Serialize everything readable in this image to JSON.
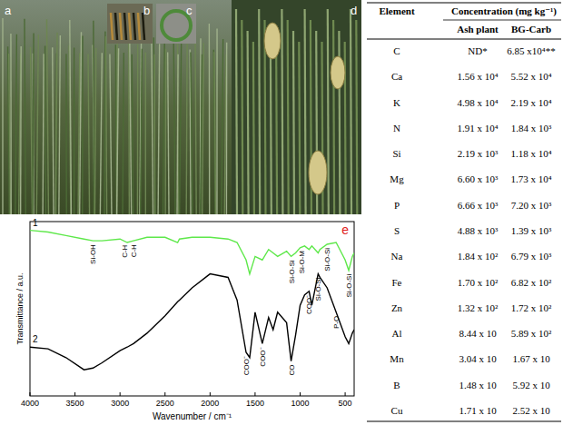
{
  "photo": {
    "panels": [
      "a",
      "b",
      "c",
      "d"
    ]
  },
  "chart_data": {
    "type": "line",
    "panel": "e",
    "x_label": "Wavenumber / cm⁻¹",
    "y_label": "Transmittance / a.u.",
    "xlim": [
      4000,
      400
    ],
    "ylim": [
      0,
      100
    ],
    "xticks": [
      4000,
      3500,
      3000,
      2500,
      2000,
      1500,
      1000,
      500
    ],
    "tick_labels": "x",
    "grid": false,
    "x": [
      4000,
      3800,
      3600,
      3400,
      3300,
      3200,
      3000,
      2920,
      2850,
      2700,
      2500,
      2360,
      2340,
      2200,
      2000,
      1800,
      1700,
      1600,
      1560,
      1500,
      1420,
      1350,
      1300,
      1250,
      1150,
      1100,
      1050,
      1000,
      950,
      900,
      870,
      800,
      780,
      700,
      600,
      500,
      460,
      420,
      400
    ],
    "series": [
      {
        "name": "1",
        "color": "#5ee84a",
        "values": [
          95,
          94,
          92,
          90,
          89,
          89,
          90,
          88,
          89,
          91,
          91,
          88,
          90,
          91,
          91,
          90,
          88,
          78,
          70,
          80,
          78,
          84,
          82,
          80,
          83,
          80,
          82,
          85,
          86,
          84,
          86,
          82,
          84,
          87,
          88,
          78,
          72,
          80,
          82
        ],
        "annotations": [
          {
            "text": "Si-OH",
            "x": 3300
          },
          {
            "text": "C-H",
            "x": 2950
          },
          {
            "text": "C-H",
            "x": 2850
          },
          {
            "text": "Si-O-Si",
            "x": 1100
          },
          {
            "text": "Si-O-M",
            "x": 980
          },
          {
            "text": "Si-O-Si",
            "x": 700
          },
          {
            "text": "Si-O-Si",
            "x": 460
          }
        ]
      },
      {
        "name": "2",
        "color": "#000000",
        "values": [
          28,
          27,
          22,
          15,
          16,
          19,
          26,
          28,
          30,
          36,
          46,
          54,
          55,
          62,
          70,
          68,
          55,
          25,
          22,
          48,
          30,
          45,
          38,
          48,
          42,
          20,
          35,
          52,
          58,
          60,
          52,
          70,
          68,
          62,
          48,
          34,
          30,
          36,
          38
        ],
        "annotations": [
          {
            "text": "COO⁻",
            "x": 1600
          },
          {
            "text": "COO⁻",
            "x": 1420
          },
          {
            "text": "CO",
            "x": 1100
          },
          {
            "text": "COO⁻",
            "x": 900
          },
          {
            "text": "Si-O-Si",
            "x": 800
          },
          {
            "text": "P-O",
            "x": 600
          }
        ]
      }
    ]
  },
  "table": {
    "headers": [
      "Element",
      "Concentration (mg kg⁻¹)"
    ],
    "subheaders": [
      "Ash plant",
      "BG-Carb"
    ],
    "rows": [
      [
        "C",
        "ND*",
        "6.85 x10⁴**"
      ],
      [
        "Ca",
        "1.56 x 10⁴",
        "5.52 x 10⁴"
      ],
      [
        "K",
        "4.98 x 10⁴",
        "2.19 x 10⁴"
      ],
      [
        "N",
        "1.91 x 10⁴",
        "1.84 x 10³"
      ],
      [
        "Si",
        "2.19 x 10³",
        "1.18 x 10⁴"
      ],
      [
        "Mg",
        "6.60 x 10³",
        "1.73 x 10⁴"
      ],
      [
        "P",
        "6.66 x 10³",
        "7.20 x 10³"
      ],
      [
        "S",
        "4.88 x 10³",
        "1.39 x 10³"
      ],
      [
        "Na",
        "1.84 x 10²",
        "6.79 x 10³"
      ],
      [
        "Fe",
        "1.70 x 10²",
        "6.82 x 10²"
      ],
      [
        "Zn",
        "1.32 x 10²",
        "1.72 x 10²"
      ],
      [
        "Al",
        "8.44 x 10",
        "5.89 x 10²"
      ],
      [
        "Mn",
        "3.04 x 10",
        "1.67 x 10"
      ],
      [
        "B",
        "1.48 x 10",
        "5.92 x 10"
      ],
      [
        "Cu",
        "1.71 x 10",
        "2.52 x 10"
      ]
    ]
  }
}
